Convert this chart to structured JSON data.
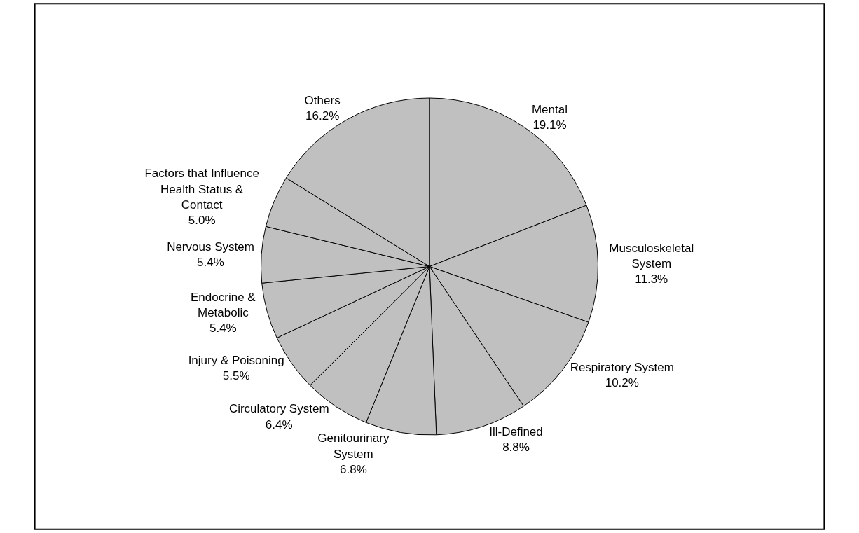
{
  "chart_data": {
    "type": "pie",
    "categories": [
      "Mental",
      "Musculoskeletal\nSystem",
      "Respiratory System",
      "Ill-Defined",
      "Genitourinary\nSystem",
      "Circulatory System",
      "Injury & Poisoning",
      "Endocrine &\nMetabolic",
      "Nervous System",
      "Factors that Influence\nHealth Status &\nContact",
      "Others"
    ],
    "values": [
      19.1,
      11.3,
      10.2,
      8.8,
      6.8,
      6.4,
      5.5,
      5.4,
      5.4,
      5.0,
      16.2
    ],
    "value_labels": [
      "19.1%",
      "11.3%",
      "10.2%",
      "8.8%",
      "6.8%",
      "6.4%",
      "5.5%",
      "5.4%",
      "5.4%",
      "5.0%",
      "16.2%"
    ],
    "colors": [
      "#c0c0c0",
      "#c0c0c0",
      "#c0c0c0",
      "#c0c0c0",
      "#c0c0c0",
      "#c0c0c0",
      "#c0c0c0",
      "#c0c0c0",
      "#c0c0c0",
      "#c0c0c0",
      "#c0c0c0"
    ],
    "legend": false
  }
}
